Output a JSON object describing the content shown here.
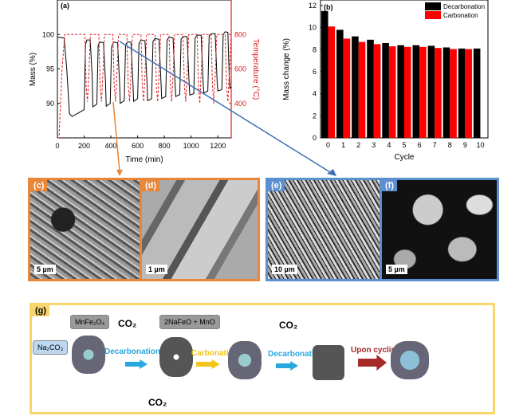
{
  "chart_data": [
    {
      "type": "line",
      "panel_label": "(a)",
      "xlabel": "Time (min)",
      "ylabel": "Mass (%)",
      "y2label": "Temperature (°C)",
      "xlim": [
        0,
        1300
      ],
      "ylim": [
        85,
        105
      ],
      "y2lim": [
        200,
        1000
      ],
      "xticks": [
        "0",
        "200",
        "400",
        "600",
        "800",
        "1000",
        "1200"
      ],
      "yticks": [
        "90",
        "95",
        "100"
      ],
      "y2ticks": [
        "400",
        "600",
        "800"
      ],
      "colors": {
        "mass": "#000000",
        "temperature": "#e02020"
      },
      "series": [
        {
          "key": "mass",
          "axis": "left",
          "style": "solid",
          "points": [
            [
              0,
              99.6
            ],
            [
              50,
              99.5
            ],
            [
              70,
              95
            ],
            [
              90,
              88.5
            ],
            [
              110,
              88.1
            ],
            [
              200,
              89.1
            ],
            [
              210,
              98.5
            ],
            [
              220,
              99.2
            ],
            [
              245,
              99.2
            ],
            [
              260,
              94
            ],
            [
              265,
              89.5
            ],
            [
              295,
              89.9
            ],
            [
              305,
              98.5
            ],
            [
              320,
              98.9
            ],
            [
              345,
              98.8
            ],
            [
              360,
              93
            ],
            [
              365,
              89.6
            ],
            [
              395,
              90
            ],
            [
              405,
              98.2
            ],
            [
              420,
              98.9
            ],
            [
              450,
              98.8
            ],
            [
              465,
              93
            ],
            [
              470,
              90
            ],
            [
              500,
              90.4
            ],
            [
              510,
              98.5
            ],
            [
              525,
              98.9
            ],
            [
              550,
              98.9
            ],
            [
              565,
              93
            ],
            [
              570,
              90.3
            ],
            [
              600,
              90.7
            ],
            [
              610,
              98.7
            ],
            [
              625,
              99.2
            ],
            [
              655,
              99.1
            ],
            [
              670,
              93
            ],
            [
              675,
              90.4
            ],
            [
              705,
              90.7
            ],
            [
              715,
              99
            ],
            [
              730,
              99.4
            ],
            [
              760,
              99.3
            ],
            [
              775,
              93
            ],
            [
              780,
              90.7
            ],
            [
              810,
              91
            ],
            [
              820,
              99.2
            ],
            [
              835,
              99.6
            ],
            [
              865,
              99.5
            ],
            [
              880,
              93
            ],
            [
              885,
              91
            ],
            [
              915,
              91.3
            ],
            [
              925,
              99.3
            ],
            [
              940,
              99.7
            ],
            [
              970,
              99.7
            ],
            [
              985,
              93
            ],
            [
              990,
              91.2
            ],
            [
              1020,
              91.4
            ],
            [
              1030,
              99.5
            ],
            [
              1045,
              99.9
            ],
            [
              1075,
              99.9
            ],
            [
              1090,
              93
            ],
            [
              1095,
              91.5
            ],
            [
              1125,
              91.8
            ],
            [
              1135,
              99.8
            ],
            [
              1150,
              100.1
            ],
            [
              1180,
              100.1
            ],
            [
              1195,
              93
            ],
            [
              1200,
              91.8
            ],
            [
              1230,
              92
            ],
            [
              1240,
              100
            ],
            [
              1255,
              100.4
            ],
            [
              1275,
              100.3
            ],
            [
              1285,
              94
            ],
            [
              1290,
              92.2
            ],
            [
              1300,
              92.4
            ]
          ]
        },
        {
          "key": "temperature",
          "axis": "right",
          "style": "dashed",
          "points": [
            [
              0,
              200
            ],
            [
              12,
              200
            ],
            [
              35,
              600
            ],
            [
              55,
              800
            ],
            [
              205,
              800
            ],
            [
              215,
              500
            ],
            [
              225,
              410
            ],
            [
              237,
              600
            ],
            [
              247,
              800
            ],
            [
              310,
              800
            ],
            [
              320,
              500
            ],
            [
              330,
              410
            ],
            [
              342,
              600
            ],
            [
              352,
              800
            ],
            [
              415,
              800
            ],
            [
              425,
              500
            ],
            [
              435,
              410
            ],
            [
              447,
              600
            ],
            [
              457,
              800
            ],
            [
              520,
              800
            ],
            [
              530,
              500
            ],
            [
              540,
              410
            ],
            [
              552,
              600
            ],
            [
              562,
              800
            ],
            [
              625,
              800
            ],
            [
              635,
              500
            ],
            [
              645,
              410
            ],
            [
              657,
              600
            ],
            [
              667,
              800
            ],
            [
              730,
              800
            ],
            [
              740,
              500
            ],
            [
              750,
              410
            ],
            [
              762,
              600
            ],
            [
              772,
              800
            ],
            [
              835,
              800
            ],
            [
              845,
              500
            ],
            [
              855,
              410
            ],
            [
              867,
              600
            ],
            [
              877,
              800
            ],
            [
              940,
              800
            ],
            [
              950,
              500
            ],
            [
              960,
              410
            ],
            [
              972,
              600
            ],
            [
              982,
              800
            ],
            [
              1045,
              800
            ],
            [
              1055,
              500
            ],
            [
              1065,
              400
            ],
            [
              1077,
              600
            ],
            [
              1087,
              800
            ],
            [
              1150,
              800
            ],
            [
              1160,
              500
            ],
            [
              1170,
              400
            ],
            [
              1182,
              600
            ],
            [
              1192,
              800
            ],
            [
              1255,
              800
            ],
            [
              1265,
              500
            ],
            [
              1275,
              410
            ],
            [
              1287,
              600
            ],
            [
              1300,
              800
            ]
          ]
        }
      ]
    },
    {
      "type": "bar",
      "panel_label": "(b)",
      "xlabel": "Cycle",
      "ylabel": "Mass change (%)",
      "ylim": [
        0,
        12.5
      ],
      "categories": [
        "0",
        "1",
        "2",
        "3",
        "4",
        "5",
        "6",
        "7",
        "8",
        "9",
        "10"
      ],
      "yticks": [
        "0",
        "2",
        "4",
        "6",
        "8",
        "10",
        "12"
      ],
      "legend": "top-right",
      "series": [
        {
          "name": "Decarbonation",
          "color": "#000000",
          "values": [
            11.5,
            9.8,
            9.2,
            8.9,
            8.6,
            8.4,
            8.4,
            8.35,
            8.2,
            8.1,
            8.1
          ]
        },
        {
          "name": "Carbonation",
          "color": "#ff0000",
          "values": [
            10.1,
            9.0,
            8.7,
            8.5,
            8.3,
            8.25,
            8.25,
            8.15,
            8.05,
            8.05,
            null
          ]
        }
      ]
    }
  ],
  "micrographs": [
    {
      "label": "(c)",
      "scale": "5 µm",
      "border": "#e8863a"
    },
    {
      "label": "(d)",
      "scale": "1 µm",
      "border": "#e8863a"
    },
    {
      "label": "(e)",
      "scale": "10 µm",
      "border": "#5b8fd0"
    },
    {
      "label": "(f)",
      "scale": "5 µm",
      "border": "#5b8fd0"
    }
  ],
  "scheme": {
    "label": "(g)",
    "mnfe2o4": "MnFe₂O₄",
    "na2co3": "Na₂CO₃",
    "co2_1": "CO₂",
    "decarb1": "Decarbonation",
    "product": "2NaFeO + MnO",
    "co2_in": "CO₂",
    "carb": "Carbonation",
    "co2_2": "CO₂",
    "decarb2": "Decarbonation",
    "cycling": "Upon cycling",
    "colors": {
      "decarbonation": "#29a8e0",
      "carbonation": "#f5c518",
      "cycling": "#a52a2a",
      "border": "#f7d66e"
    }
  }
}
